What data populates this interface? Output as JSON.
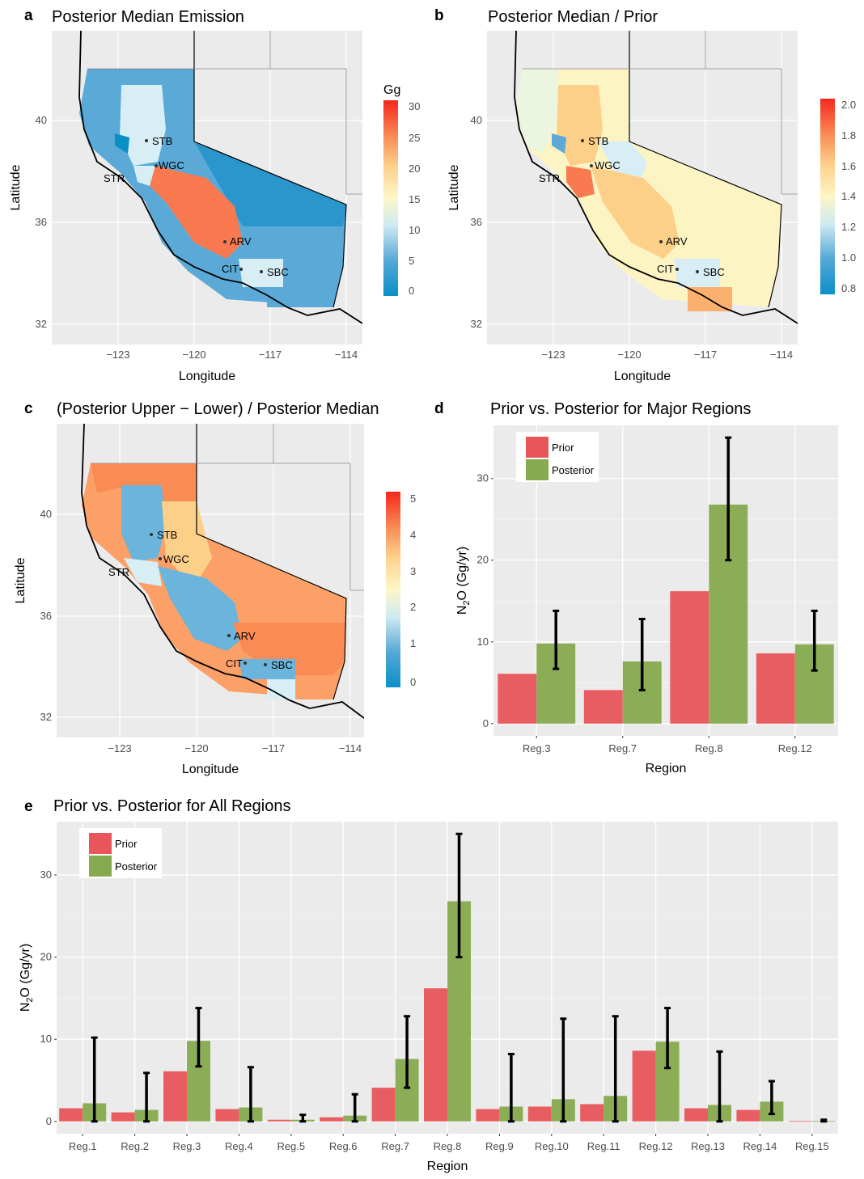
{
  "panels": {
    "a": {
      "letter": "a",
      "title": "Posterior Median Emission",
      "legend_title": "Gg",
      "legend_ticks": [
        "30",
        "25",
        "20",
        "15",
        "10",
        "5",
        "0"
      ]
    },
    "b": {
      "letter": "b",
      "title": "Posterior Median / Prior",
      "legend_ticks": [
        "2.0",
        "1.8",
        "1.6",
        "1.4",
        "1.2",
        "1.0",
        "0.8"
      ]
    },
    "c": {
      "letter": "c",
      "title": "(Posterior Upper − Lower) / Posterior Median",
      "legend_ticks": [
        "5",
        "4",
        "3",
        "2",
        "1",
        "0"
      ]
    },
    "d": {
      "letter": "d",
      "title": "Prior vs. Posterior for Major Regions"
    },
    "e": {
      "letter": "e",
      "title": "Prior vs. Posterior for All Regions"
    }
  },
  "maps": {
    "xlabel": "Longitude",
    "ylabel": "Latitude",
    "x_ticks": [
      "−123",
      "−120",
      "−117",
      "−114"
    ],
    "y_ticks": [
      "40",
      "36",
      "32"
    ],
    "sites": [
      "STB",
      "WGC",
      "STR",
      "ARV",
      "CIT",
      "SBC"
    ]
  },
  "chart_data": [
    {
      "type": "bar",
      "title": "Prior vs. Posterior for Major Regions",
      "xlabel": "Region",
      "ylabel": "N2O (Gg/yr)",
      "ylim": [
        -1.5,
        36.5
      ],
      "yticks": [
        0,
        10,
        20,
        30
      ],
      "categories": [
        "Reg.3",
        "Reg.7",
        "Reg.8",
        "Reg.12"
      ],
      "series": [
        {
          "name": "Prior",
          "color": "#e8555a",
          "values": [
            6.1,
            4.1,
            16.2,
            8.6
          ]
        },
        {
          "name": "Posterior",
          "color": "#86aa4e",
          "values": [
            9.8,
            7.6,
            26.8,
            9.7
          ],
          "err_low": [
            6.7,
            4.1,
            20.0,
            6.5
          ],
          "err_high": [
            13.8,
            12.8,
            35.0,
            13.8
          ]
        }
      ],
      "legend": "top-left"
    },
    {
      "type": "bar",
      "title": "Prior vs. Posterior for All Regions",
      "xlabel": "Region",
      "ylabel": "N2O (Gg/yr)",
      "ylim": [
        -1.5,
        36.5
      ],
      "yticks": [
        0,
        10,
        20,
        30
      ],
      "categories": [
        "Reg.1",
        "Reg.2",
        "Reg.3",
        "Reg.4",
        "Reg.5",
        "Reg.6",
        "Reg.7",
        "Reg.8",
        "Reg.9",
        "Reg.10",
        "Reg.11",
        "Reg.12",
        "Reg.13",
        "Reg.14",
        "Reg.15"
      ],
      "series": [
        {
          "name": "Prior",
          "color": "#e8555a",
          "values": [
            1.6,
            1.1,
            6.1,
            1.5,
            0.2,
            0.5,
            4.1,
            16.2,
            1.5,
            1.8,
            2.1,
            8.6,
            1.6,
            1.4,
            0.05
          ]
        },
        {
          "name": "Posterior",
          "color": "#86aa4e",
          "values": [
            2.2,
            1.4,
            9.8,
            1.7,
            0.2,
            0.7,
            7.6,
            26.8,
            1.8,
            2.7,
            3.1,
            9.7,
            2.0,
            2.4,
            0.05
          ],
          "err_low": [
            0.0,
            0.0,
            6.7,
            0.0,
            0.0,
            0.0,
            4.1,
            20.0,
            0.0,
            0.0,
            0.0,
            6.5,
            0.0,
            0.9,
            0.0
          ],
          "err_high": [
            10.2,
            5.9,
            13.8,
            6.6,
            0.8,
            3.3,
            12.8,
            35.0,
            8.2,
            12.5,
            12.8,
            13.8,
            8.5,
            4.9,
            0.2
          ]
        }
      ],
      "legend": "top-left"
    }
  ],
  "legend_labels": {
    "prior": "Prior",
    "posterior": "Posterior"
  }
}
